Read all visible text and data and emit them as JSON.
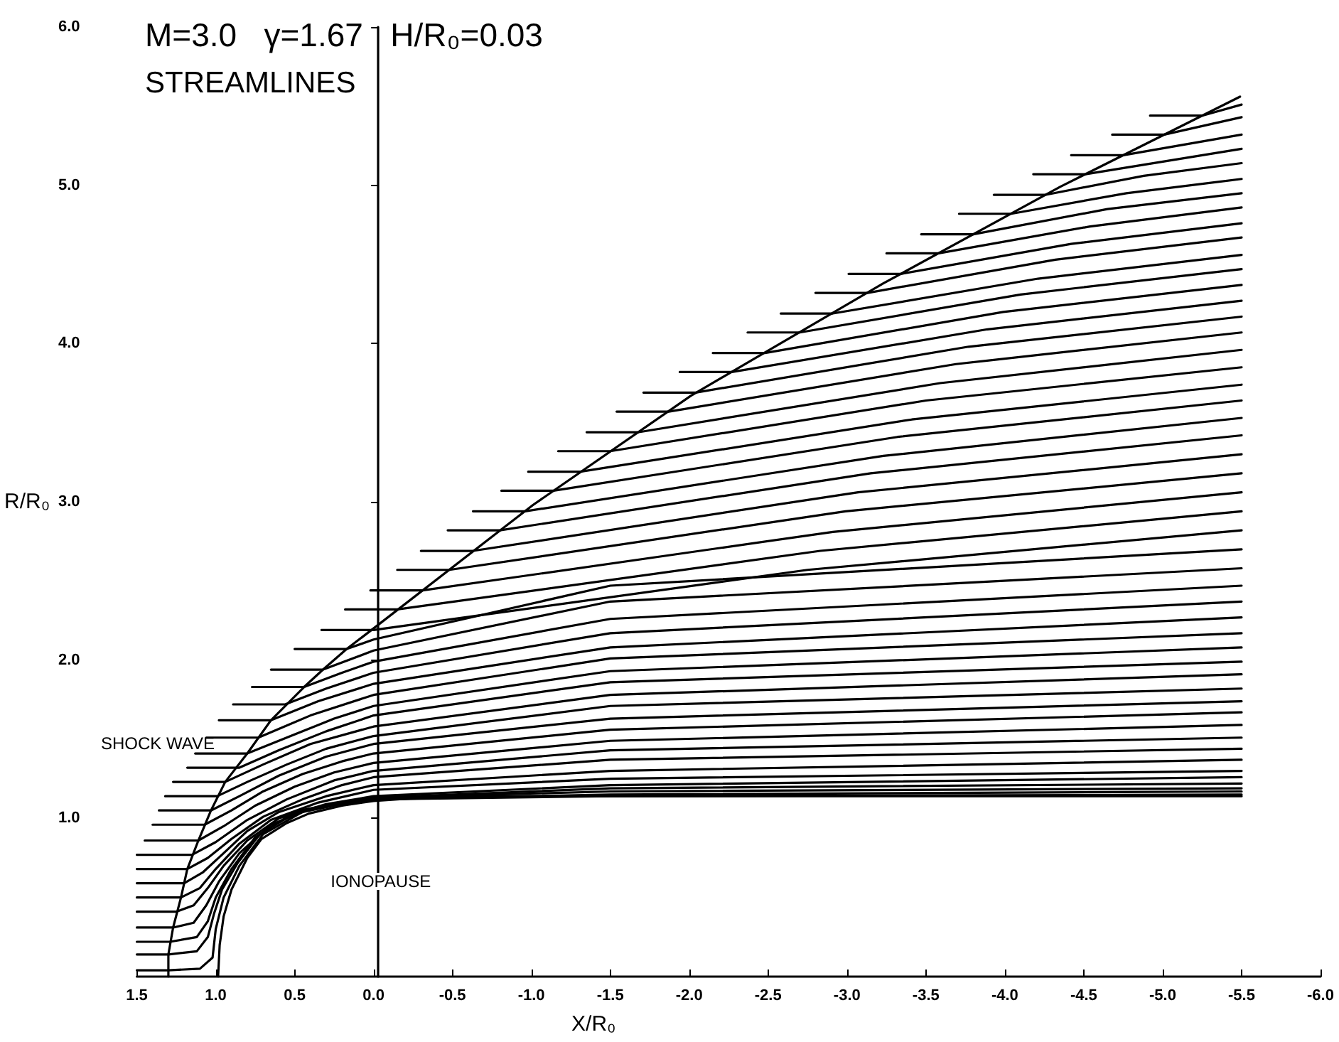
{
  "chart_data": {
    "type": "line",
    "title": "M=3.0   γ=1.67   H/R₀=0.03",
    "subtitle": "STREAMLINES",
    "xlabel": "X/R₀",
    "ylabel": "R/R₀",
    "xlim": [
      1.5,
      -6.0
    ],
    "ylim": [
      0,
      6
    ],
    "xticks": [
      {
        "value": 1.5,
        "label": "1.5"
      },
      {
        "value": 1,
        "label": "1.0"
      },
      {
        "value": 0.5,
        "label": "0.5"
      },
      {
        "value": 0,
        "label": "0.0"
      },
      {
        "value": -0.5,
        "label": "-0.5"
      },
      {
        "value": -1,
        "label": "-1.0"
      },
      {
        "value": -1.5,
        "label": "-1.5"
      },
      {
        "value": -2,
        "label": "-2.0"
      },
      {
        "value": -2.5,
        "label": "-2.5"
      },
      {
        "value": -3,
        "label": "-3.0"
      },
      {
        "value": -3.5,
        "label": "-3.5"
      },
      {
        "value": -4,
        "label": "-4.0"
      },
      {
        "value": -4.5,
        "label": "-4.5"
      },
      {
        "value": -5,
        "label": "-5.0"
      },
      {
        "value": -5.5,
        "label": "-5.5"
      },
      {
        "value": -6,
        "label": "-6.0"
      }
    ],
    "yticks": [
      {
        "value": 1,
        "label": "1.0"
      },
      {
        "value": 2,
        "label": "2.0"
      },
      {
        "value": 3,
        "label": "3.0"
      },
      {
        "value": 4,
        "label": "4.0"
      },
      {
        "value": 5,
        "label": "5.0"
      },
      {
        "value": 6,
        "label": "6.0"
      }
    ],
    "marker": "none",
    "annotations": [
      "SHOCK WAVE",
      "IONOPAUSE"
    ],
    "series": [
      {
        "color": "#000000",
        "x": [
          1.3,
          1.3,
          1.27,
          1.22,
          1.18,
          1.11,
          1.03,
          0.94,
          0.8,
          0.65,
          0.44,
          0.32,
          0.17,
          0.0,
          -1.01,
          -2.01,
          -3.23,
          -4.35,
          -5.49
        ],
        "values": [
          0,
          0.14,
          0.31,
          0.5,
          0.68,
          0.86,
          1.05,
          1.23,
          1.41,
          1.62,
          1.83,
          1.94,
          2.07,
          2.2,
          2.98,
          3.67,
          4.38,
          4.99,
          5.56
        ]
      },
      {
        "color": "#000000",
        "x": [
          0.985,
          0.975,
          0.95,
          0.9,
          0.8,
          0.71,
          0.55,
          0.41,
          0.2,
          0,
          -0.3,
          -0.5,
          -5.5
        ],
        "values": [
          0,
          0.2,
          0.38,
          0.55,
          0.75,
          0.87,
          0.97,
          1.03,
          1.08,
          1.11,
          1.13,
          1.14,
          1.14
        ]
      },
      {
        "color": "#000000",
        "x": [
          1.5,
          1.3,
          1.1,
          1.02,
          1.0,
          0.95,
          0.85,
          0.7,
          0.45,
          0.2,
          0,
          -1.5,
          -5.5
        ],
        "values": [
          0.04,
          0.04,
          0.05,
          0.12,
          0.3,
          0.5,
          0.7,
          0.9,
          1.04,
          1.09,
          1.12,
          1.14,
          1.15
        ]
      },
      {
        "color": "#000000",
        "x": [
          1.5,
          1.3,
          1.12,
          1.05,
          1.01,
          0.96,
          0.86,
          0.72,
          0.47,
          0.2,
          0,
          -1.5,
          -5.5
        ],
        "values": [
          0.14,
          0.14,
          0.16,
          0.25,
          0.4,
          0.55,
          0.72,
          0.9,
          1.05,
          1.1,
          1.12,
          1.15,
          1.17
        ]
      },
      {
        "color": "#000000",
        "x": [
          1.5,
          1.29,
          1.12,
          1.05,
          1.0,
          0.9,
          0.75,
          0.5,
          0.2,
          0,
          -1.5,
          -5.5
        ],
        "values": [
          0.22,
          0.22,
          0.25,
          0.35,
          0.5,
          0.68,
          0.88,
          1.04,
          1.1,
          1.13,
          1.17,
          1.19
        ]
      },
      {
        "color": "#000000",
        "x": [
          1.5,
          1.27,
          1.14,
          1.06,
          0.98,
          0.85,
          0.65,
          0.4,
          0,
          -1.5,
          -5.5
        ],
        "values": [
          0.31,
          0.31,
          0.34,
          0.45,
          0.6,
          0.78,
          0.96,
          1.06,
          1.13,
          1.19,
          1.22
        ]
      },
      {
        "color": "#000000",
        "x": [
          1.5,
          1.25,
          1.14,
          1.05,
          0.95,
          0.8,
          0.6,
          0.3,
          0,
          -1.5,
          -5.5
        ],
        "values": [
          0.41,
          0.41,
          0.45,
          0.56,
          0.7,
          0.86,
          1.0,
          1.09,
          1.14,
          1.21,
          1.26
        ]
      },
      {
        "color": "#000000",
        "x": [
          1.5,
          1.22,
          1.1,
          1.0,
          0.85,
          0.65,
          0.35,
          0,
          -1.5,
          -5.5
        ],
        "values": [
          0.5,
          0.5,
          0.56,
          0.68,
          0.84,
          0.99,
          1.1,
          1.18,
          1.25,
          1.3
        ]
      },
      {
        "color": "#000000",
        "x": [
          1.5,
          1.2,
          1.08,
          0.95,
          0.8,
          0.6,
          0.3,
          0,
          -1.5,
          -5.5
        ],
        "values": [
          0.59,
          0.59,
          0.66,
          0.78,
          0.92,
          1.04,
          1.14,
          1.21,
          1.3,
          1.37
        ]
      },
      {
        "color": "#000000",
        "x": [
          1.5,
          1.18,
          1.05,
          0.9,
          0.7,
          0.45,
          0.2,
          0,
          -1.5,
          -5.5
        ],
        "values": [
          0.68,
          0.68,
          0.75,
          0.87,
          1.01,
          1.12,
          1.21,
          1.26,
          1.37,
          1.44
        ]
      },
      {
        "color": "#000000",
        "x": [
          1.5,
          1.15,
          1.0,
          0.8,
          0.55,
          0.25,
          0,
          -1.5,
          -5.5
        ],
        "values": [
          0.77,
          0.77,
          0.85,
          0.99,
          1.12,
          1.24,
          1.3,
          1.43,
          1.51
        ]
      },
      {
        "color": "#000000",
        "x": [
          1.45,
          1.11,
          0.95,
          0.75,
          0.5,
          0.25,
          0,
          -1.5,
          -5.5
        ],
        "values": [
          0.86,
          0.86,
          0.95,
          1.08,
          1.2,
          1.29,
          1.35,
          1.49,
          1.59
        ]
      },
      {
        "color": "#000000",
        "x": [
          1.4,
          1.07,
          0.9,
          0.7,
          0.45,
          0.2,
          0,
          -1.5,
          -5.5
        ],
        "values": [
          0.96,
          0.96,
          1.05,
          1.17,
          1.28,
          1.36,
          1.41,
          1.56,
          1.67
        ]
      },
      {
        "color": "#000000",
        "x": [
          1.36,
          1.03,
          0.85,
          0.6,
          0.3,
          0,
          -1.5,
          -5.5
        ],
        "values": [
          1.05,
          1.05,
          1.14,
          1.27,
          1.39,
          1.47,
          1.63,
          1.74
        ]
      },
      {
        "color": "#000000",
        "x": [
          1.32,
          0.99,
          0.8,
          0.55,
          0.3,
          0,
          -1.5,
          -5.5
        ],
        "values": [
          1.14,
          1.14,
          1.23,
          1.34,
          1.44,
          1.52,
          1.71,
          1.82
        ]
      },
      {
        "color": "#000000",
        "x": [
          1.27,
          0.94,
          0.7,
          0.4,
          0,
          -1.5,
          -5.5
        ],
        "values": [
          1.23,
          1.23,
          1.34,
          1.47,
          1.58,
          1.78,
          1.91
        ]
      },
      {
        "color": "#000000",
        "x": [
          1.18,
          0.85,
          0.6,
          0.3,
          0,
          -1.5,
          -5.5
        ],
        "values": [
          1.32,
          1.32,
          1.43,
          1.55,
          1.65,
          1.86,
          1.99
        ]
      },
      {
        "color": "#000000",
        "x": [
          1.13,
          0.8,
          0.5,
          0.25,
          0,
          -1.5,
          -5.5
        ],
        "values": [
          1.41,
          1.41,
          1.53,
          1.63,
          1.71,
          1.93,
          2.08
        ]
      },
      {
        "color": "#000000",
        "x": [
          1.06,
          0.73,
          0.4,
          0,
          -1.5,
          -5.5
        ],
        "values": [
          1.51,
          1.51,
          1.65,
          1.78,
          2.01,
          2.17
        ]
      },
      {
        "color": "#000000",
        "x": [
          0.98,
          0.65,
          0.35,
          0,
          -1.5,
          -5.5
        ],
        "values": [
          1.62,
          1.62,
          1.74,
          1.85,
          2.08,
          2.27
        ]
      },
      {
        "color": "#000000",
        "x": [
          0.89,
          0.56,
          0.3,
          0,
          -1.5,
          -5.5
        ],
        "values": [
          1.72,
          1.72,
          1.82,
          1.92,
          2.17,
          2.37
        ]
      },
      {
        "color": "#000000",
        "x": [
          0.77,
          0.44,
          0.2,
          0,
          -1.5,
          -5.5
        ],
        "values": [
          1.83,
          1.83,
          1.92,
          1.99,
          2.26,
          2.47
        ]
      },
      {
        "color": "#000000",
        "x": [
          0.65,
          0.32,
          0,
          -1.5,
          -5.5
        ],
        "values": [
          1.94,
          1.94,
          2.06,
          2.37,
          2.58
        ]
      },
      {
        "color": "#000000",
        "x": [
          0.5,
          0.17,
          0,
          -1.5,
          -5.5
        ],
        "values": [
          2.07,
          2.07,
          2.13,
          2.47,
          2.7
        ]
      },
      {
        "color": "#000000",
        "x": [
          0.33,
          0.0,
          -2.75,
          -5.5
        ],
        "values": [
          2.19,
          2.19,
          2.57,
          2.82
        ]
      },
      {
        "color": "#000000",
        "x": [
          0.18,
          -0.15,
          -2.83,
          -5.5
        ],
        "values": [
          2.32,
          2.32,
          2.69,
          2.94
        ]
      },
      {
        "color": "#000000",
        "x": [
          0.02,
          -0.31,
          -2.91,
          -5.5
        ],
        "values": [
          2.44,
          2.44,
          2.81,
          3.06
        ]
      },
      {
        "color": "#000000",
        "x": [
          -0.15,
          -0.48,
          -2.99,
          -5.5
        ],
        "values": [
          2.57,
          2.57,
          2.94,
          3.18
        ]
      },
      {
        "color": "#000000",
        "x": [
          -0.3,
          -0.63,
          -3.07,
          -5.5
        ],
        "values": [
          2.69,
          2.69,
          3.06,
          3.3
        ]
      },
      {
        "color": "#000000",
        "x": [
          -0.47,
          -0.8,
          -3.15,
          -5.5
        ],
        "values": [
          2.82,
          2.82,
          3.18,
          3.42
        ]
      },
      {
        "color": "#000000",
        "x": [
          -0.63,
          -0.96,
          -3.23,
          -5.5
        ],
        "values": [
          2.94,
          2.94,
          3.29,
          3.53
        ]
      },
      {
        "color": "#000000",
        "x": [
          -0.81,
          -1.14,
          -3.32,
          -5.5
        ],
        "values": [
          3.07,
          3.07,
          3.41,
          3.64
        ]
      },
      {
        "color": "#000000",
        "x": [
          -0.98,
          -1.31,
          -3.41,
          -5.5
        ],
        "values": [
          3.19,
          3.19,
          3.52,
          3.74
        ]
      },
      {
        "color": "#000000",
        "x": [
          -1.17,
          -1.5,
          -3.5,
          -5.5
        ],
        "values": [
          3.32,
          3.32,
          3.64,
          3.85
        ]
      },
      {
        "color": "#000000",
        "x": [
          -1.35,
          -1.68,
          -3.59,
          -5.5
        ],
        "values": [
          3.44,
          3.44,
          3.75,
          3.96
        ]
      },
      {
        "color": "#000000",
        "x": [
          -1.54,
          -1.87,
          -3.69,
          -5.5
        ],
        "values": [
          3.57,
          3.57,
          3.87,
          4.07
        ]
      },
      {
        "color": "#000000",
        "x": [
          -1.71,
          -2.04,
          -3.77,
          -5.5
        ],
        "values": [
          3.69,
          3.69,
          3.98,
          4.17
        ]
      },
      {
        "color": "#000000",
        "x": [
          -1.94,
          -2.27,
          -3.89,
          -5.5
        ],
        "values": [
          3.82,
          3.82,
          4.09,
          4.27
        ]
      },
      {
        "color": "#000000",
        "x": [
          -2.15,
          -2.48,
          -3.99,
          -5.5
        ],
        "values": [
          3.94,
          3.94,
          4.2,
          4.37
        ]
      },
      {
        "color": "#000000",
        "x": [
          -2.37,
          -2.7,
          -4.1,
          -5.5
        ],
        "values": [
          4.07,
          4.07,
          4.31,
          4.47
        ]
      },
      {
        "color": "#000000",
        "x": [
          -2.58,
          -2.91,
          -4.21,
          -5.5
        ],
        "values": [
          4.19,
          4.19,
          4.41,
          4.56
        ]
      },
      {
        "color": "#000000",
        "x": [
          -2.8,
          -3.13,
          -4.32,
          -5.5
        ],
        "values": [
          4.32,
          4.32,
          4.53,
          4.67
        ]
      },
      {
        "color": "#000000",
        "x": [
          -3.01,
          -3.34,
          -4.42,
          -5.5
        ],
        "values": [
          4.44,
          4.44,
          4.63,
          4.76
        ]
      },
      {
        "color": "#000000",
        "x": [
          -3.25,
          -3.58,
          -4.54,
          -5.5
        ],
        "values": [
          4.57,
          4.57,
          4.74,
          4.86
        ]
      },
      {
        "color": "#000000",
        "x": [
          -3.47,
          -3.8,
          -4.65,
          -5.5
        ],
        "values": [
          4.69,
          4.69,
          4.85,
          4.95
        ]
      },
      {
        "color": "#000000",
        "x": [
          -3.71,
          -4.04,
          -4.77,
          -5.5
        ],
        "values": [
          4.82,
          4.82,
          4.95,
          5.04
        ]
      },
      {
        "color": "#000000",
        "x": [
          -3.93,
          -4.26,
          -4.88,
          -5.5
        ],
        "values": [
          4.94,
          4.94,
          5.06,
          5.14
        ]
      },
      {
        "color": "#000000",
        "x": [
          -4.18,
          -4.51,
          -5.5
        ],
        "values": [
          5.07,
          5.07,
          5.23
        ]
      },
      {
        "color": "#000000",
        "x": [
          -4.42,
          -4.75,
          -5.5
        ],
        "values": [
          5.19,
          5.19,
          5.32
        ]
      },
      {
        "color": "#000000",
        "x": [
          -4.68,
          -5.01,
          -5.5
        ],
        "values": [
          5.32,
          5.32,
          5.43
        ]
      },
      {
        "color": "#000000",
        "x": [
          -4.92,
          -5.25,
          -5.5
        ],
        "values": [
          5.44,
          5.44,
          5.51
        ]
      }
    ]
  }
}
